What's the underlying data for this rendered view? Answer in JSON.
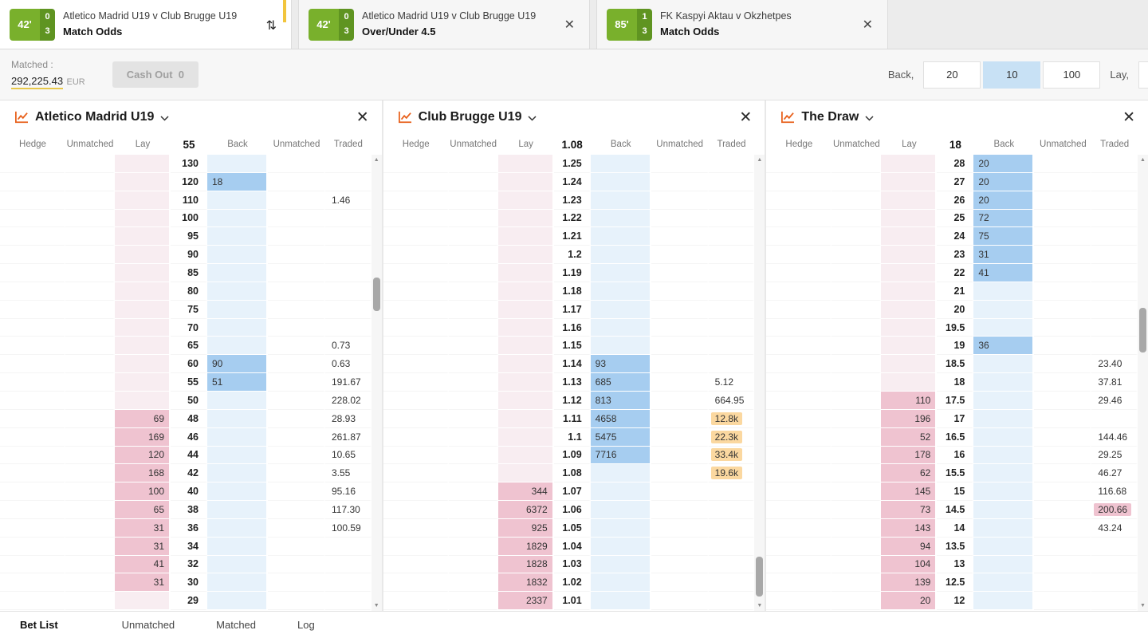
{
  "colors": {
    "badge_green": "#79b02c",
    "badge_green_dark": "#5f9421",
    "back_blue": "#a6cdf0",
    "lay_pink": "#efc3d0",
    "traded_orange": "#fbd8a0",
    "selected_stake_blue": "#c8e1f5",
    "chart_icon_orange": "#e8611c",
    "active_flag_yellow": "#f2c53d"
  },
  "tabs": [
    {
      "time": "42'",
      "score_home": "0",
      "score_away": "3",
      "title": "Atletico Madrid U19 v Club Brugge U19",
      "market": "Match Odds",
      "active": true
    },
    {
      "time": "42'",
      "score_home": "0",
      "score_away": "3",
      "title": "Atletico Madrid U19 v Club Brugge U19",
      "market": "Over/Under 4.5",
      "active": false
    },
    {
      "time": "85'",
      "score_home": "1",
      "score_away": "3",
      "title": "FK Kaspyi Aktau v Okzhetpes",
      "market": "Match Odds",
      "active": false
    }
  ],
  "toolbar": {
    "matched_label": "Matched :",
    "matched_value": "292,225.43",
    "matched_currency": "EUR",
    "cashout_label": "Cash Out",
    "cashout_value": "0",
    "back_label": "Back,",
    "stakes": [
      "20",
      "10",
      "100"
    ],
    "selected_stake": "10",
    "lay_label": "Lay,"
  },
  "ladder_headers": [
    "Hedge",
    "Unmatched",
    "Lay",
    "Back",
    "Unmatched",
    "Traded"
  ],
  "ladders": [
    {
      "title": "Atletico Madrid U19",
      "current": "55",
      "rows": [
        {
          "p": "130"
        },
        {
          "p": "120",
          "b": "18"
        },
        {
          "p": "110",
          "t": "1.46"
        },
        {
          "p": "100"
        },
        {
          "p": "95"
        },
        {
          "p": "90"
        },
        {
          "p": "85"
        },
        {
          "p": "80"
        },
        {
          "p": "75"
        },
        {
          "p": "70"
        },
        {
          "p": "65",
          "t": "0.73"
        },
        {
          "p": "60",
          "b": "90",
          "t": "0.63"
        },
        {
          "p": "55",
          "b": "51",
          "t": "191.67"
        },
        {
          "p": "50",
          "t": "228.02"
        },
        {
          "p": "48",
          "l": "69",
          "t": "28.93"
        },
        {
          "p": "46",
          "l": "169",
          "t": "261.87"
        },
        {
          "p": "44",
          "l": "120",
          "t": "10.65"
        },
        {
          "p": "42",
          "l": "168",
          "t": "3.55"
        },
        {
          "p": "40",
          "l": "100",
          "t": "95.16"
        },
        {
          "p": "38",
          "l": "65",
          "t": "117.30"
        },
        {
          "p": "36",
          "l": "31",
          "t": "100.59"
        },
        {
          "p": "34",
          "l": "31"
        },
        {
          "p": "32",
          "l": "41"
        },
        {
          "p": "30",
          "l": "31"
        },
        {
          "p": "29"
        }
      ]
    },
    {
      "title": "Club Brugge U19",
      "current": "1.08",
      "rows": [
        {
          "p": "1.25"
        },
        {
          "p": "1.24"
        },
        {
          "p": "1.23"
        },
        {
          "p": "1.22"
        },
        {
          "p": "1.21"
        },
        {
          "p": "1.2"
        },
        {
          "p": "1.19"
        },
        {
          "p": "1.18"
        },
        {
          "p": "1.17"
        },
        {
          "p": "1.16"
        },
        {
          "p": "1.15"
        },
        {
          "p": "1.14",
          "b": "93"
        },
        {
          "p": "1.13",
          "b": "685",
          "t": "5.12"
        },
        {
          "p": "1.12",
          "b": "813",
          "t": "664.95"
        },
        {
          "p": "1.11",
          "b": "4658",
          "t": "12.8k",
          "hl": "orange"
        },
        {
          "p": "1.1",
          "b": "5475",
          "t": "22.3k",
          "hl": "orange"
        },
        {
          "p": "1.09",
          "b": "7716",
          "t": "33.4k",
          "hl": "orange"
        },
        {
          "p": "1.08",
          "t": "19.6k",
          "hl": "orange"
        },
        {
          "p": "1.07",
          "l": "344"
        },
        {
          "p": "1.06",
          "l": "6372"
        },
        {
          "p": "1.05",
          "l": "925"
        },
        {
          "p": "1.04",
          "l": "1829"
        },
        {
          "p": "1.03",
          "l": "1828"
        },
        {
          "p": "1.02",
          "l": "1832"
        },
        {
          "p": "1.01",
          "l": "2337"
        }
      ]
    },
    {
      "title": "The Draw",
      "current": "18",
      "rows": [
        {
          "p": "28",
          "b": "20"
        },
        {
          "p": "27",
          "b": "20"
        },
        {
          "p": "26",
          "b": "20"
        },
        {
          "p": "25",
          "b": "72"
        },
        {
          "p": "24",
          "b": "75"
        },
        {
          "p": "23",
          "b": "31"
        },
        {
          "p": "22",
          "b": "41"
        },
        {
          "p": "21"
        },
        {
          "p": "20"
        },
        {
          "p": "19.5"
        },
        {
          "p": "19",
          "b": "36"
        },
        {
          "p": "18.5",
          "t": "23.40"
        },
        {
          "p": "18",
          "t": "37.81"
        },
        {
          "p": "17.5",
          "l": "110",
          "t": "29.46"
        },
        {
          "p": "17",
          "l": "196"
        },
        {
          "p": "16.5",
          "l": "52",
          "t": "144.46"
        },
        {
          "p": "16",
          "l": "178",
          "t": "29.25"
        },
        {
          "p": "15.5",
          "l": "62",
          "t": "46.27"
        },
        {
          "p": "15",
          "l": "145",
          "t": "116.68"
        },
        {
          "p": "14.5",
          "l": "73",
          "t": "200.66",
          "hl": "pink"
        },
        {
          "p": "14",
          "l": "143",
          "t": "43.24"
        },
        {
          "p": "13.5",
          "l": "94"
        },
        {
          "p": "13",
          "l": "104"
        },
        {
          "p": "12.5",
          "l": "139"
        },
        {
          "p": "12",
          "l": "20"
        }
      ]
    }
  ],
  "bottom_tabs": [
    {
      "label": "Bet List",
      "active": true
    },
    {
      "label": "Unmatched",
      "active": false
    },
    {
      "label": "Matched",
      "active": false
    },
    {
      "label": "Log",
      "active": false
    }
  ]
}
